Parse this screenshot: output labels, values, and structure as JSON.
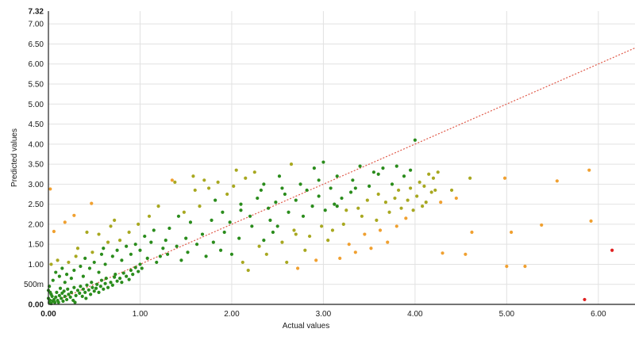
{
  "chart_data": {
    "type": "scatter",
    "xlabel": "Actual values",
    "ylabel": "Predicted values",
    "xlim": [
      0,
      6.4
    ],
    "ylim": [
      0,
      7.32
    ],
    "grid": true,
    "x_ticks": [
      {
        "value": 0,
        "label": "0.00"
      },
      {
        "value": 1,
        "label": "1.00"
      },
      {
        "value": 2,
        "label": "2.00"
      },
      {
        "value": 3,
        "label": "3.00"
      },
      {
        "value": 4,
        "label": "4.00"
      },
      {
        "value": 5,
        "label": "5.00"
      },
      {
        "value": 6,
        "label": "6.00"
      }
    ],
    "y_ticks": [
      {
        "value": 0,
        "label": "0.00"
      },
      {
        "value": 0.5,
        "label": "500m"
      },
      {
        "value": 1,
        "label": "1.00"
      },
      {
        "value": 1.5,
        "label": "1.50"
      },
      {
        "value": 2,
        "label": "2.00"
      },
      {
        "value": 2.5,
        "label": "2.50"
      },
      {
        "value": 3,
        "label": "3.00"
      },
      {
        "value": 3.5,
        "label": "3.50"
      },
      {
        "value": 4,
        "label": "4.00"
      },
      {
        "value": 4.5,
        "label": "4.50"
      },
      {
        "value": 5,
        "label": "5.00"
      },
      {
        "value": 5.5,
        "label": "5.50"
      },
      {
        "value": 6,
        "label": "6.00"
      },
      {
        "value": 6.5,
        "label": "6.50"
      },
      {
        "value": 7,
        "label": "7.00"
      },
      {
        "value": 7.32,
        "label": "7.32"
      }
    ],
    "reference_line": {
      "slope": 1,
      "intercept": 0,
      "style": "dotted",
      "color": "#e05a4a"
    },
    "colors": {
      "good": "#2a8c1c",
      "mid": "#a8a820",
      "warn": "#f0a030",
      "bad": "#e02020",
      "grid": "#e2e2e2",
      "axis": "#222222"
    },
    "points": [
      [
        0.01,
        0.05
      ],
      [
        0.02,
        0.1
      ],
      [
        0.03,
        0.02
      ],
      [
        0.0,
        0.15
      ],
      [
        0.04,
        0.2
      ],
      [
        0.05,
        0.08
      ],
      [
        0.02,
        0.3
      ],
      [
        0.01,
        0.45
      ],
      [
        0.06,
        0.12
      ],
      [
        0.03,
        0.25
      ],
      [
        0.07,
        0.05
      ],
      [
        0.08,
        0.18
      ],
      [
        0.0,
        0.35
      ],
      [
        0.1,
        0.1
      ],
      [
        0.12,
        0.22
      ],
      [
        0.09,
        0.3
      ],
      [
        0.11,
        0.05
      ],
      [
        0.14,
        0.15
      ],
      [
        0.15,
        0.28
      ],
      [
        0.13,
        0.4
      ],
      [
        0.16,
        0.08
      ],
      [
        0.18,
        0.2
      ],
      [
        0.2,
        0.12
      ],
      [
        0.17,
        0.33
      ],
      [
        0.22,
        0.25
      ],
      [
        0.24,
        0.18
      ],
      [
        0.21,
        0.38
      ],
      [
        0.25,
        0.3
      ],
      [
        0.27,
        0.1
      ],
      [
        0.28,
        0.42
      ],
      [
        0.3,
        0.22
      ],
      [
        0.32,
        0.35
      ],
      [
        0.29,
        0.05
      ],
      [
        0.34,
        0.28
      ],
      [
        0.35,
        0.45
      ],
      [
        0.37,
        0.2
      ],
      [
        0.38,
        0.38
      ],
      [
        0.4,
        0.3
      ],
      [
        0.42,
        0.48
      ],
      [
        0.41,
        0.15
      ],
      [
        0.44,
        0.36
      ],
      [
        0.46,
        0.25
      ],
      [
        0.48,
        0.42
      ],
      [
        0.5,
        0.33
      ],
      [
        0.47,
        0.55
      ],
      [
        0.52,
        0.4
      ],
      [
        0.55,
        0.3
      ],
      [
        0.53,
        0.5
      ],
      [
        0.57,
        0.45
      ],
      [
        0.6,
        0.38
      ],
      [
        0.58,
        0.6
      ],
      [
        0.62,
        0.52
      ],
      [
        0.65,
        0.42
      ],
      [
        0.63,
        0.65
      ],
      [
        0.68,
        0.55
      ],
      [
        0.7,
        0.48
      ],
      [
        0.72,
        0.68
      ],
      [
        0.75,
        0.58
      ],
      [
        0.73,
        0.75
      ],
      [
        0.78,
        0.65
      ],
      [
        0.8,
        0.55
      ],
      [
        0.82,
        0.78
      ],
      [
        0.85,
        0.7
      ],
      [
        0.88,
        0.62
      ],
      [
        0.9,
        0.85
      ],
      [
        0.92,
        0.75
      ],
      [
        0.95,
        0.92
      ],
      [
        0.98,
        0.82
      ],
      [
        1.0,
        1.0
      ],
      [
        1.02,
        0.9
      ],
      [
        0.05,
        0.6
      ],
      [
        0.08,
        0.8
      ],
      [
        0.03,
        1.0
      ],
      [
        0.1,
        1.1
      ],
      [
        0.12,
        0.7
      ],
      [
        0.18,
        0.55
      ],
      [
        0.15,
        0.9
      ],
      [
        0.2,
        0.75
      ],
      [
        0.25,
        0.65
      ],
      [
        0.22,
        1.05
      ],
      [
        0.28,
        0.85
      ],
      [
        0.3,
        1.2
      ],
      [
        0.35,
        0.95
      ],
      [
        0.38,
        0.7
      ],
      [
        0.4,
        1.15
      ],
      [
        0.45,
        0.9
      ],
      [
        0.48,
        1.3
      ],
      [
        0.5,
        1.05
      ],
      [
        0.55,
        0.8
      ],
      [
        0.58,
        1.25
      ],
      [
        0.6,
        1.4
      ],
      [
        0.62,
        1.0
      ],
      [
        0.65,
        1.55
      ],
      [
        0.7,
        1.2
      ],
      [
        0.75,
        1.35
      ],
      [
        0.78,
        1.6
      ],
      [
        0.8,
        1.1
      ],
      [
        0.85,
        1.45
      ],
      [
        0.88,
        1.8
      ],
      [
        0.9,
        1.25
      ],
      [
        0.95,
        1.5
      ],
      [
        0.98,
        2.0
      ],
      [
        1.0,
        1.35
      ],
      [
        1.05,
        1.7
      ],
      [
        1.08,
        1.15
      ],
      [
        1.1,
        2.2
      ],
      [
        1.12,
        1.55
      ],
      [
        1.15,
        1.85
      ],
      [
        1.18,
        1.05
      ],
      [
        1.2,
        2.45
      ],
      [
        0.02,
        2.88
      ],
      [
        0.06,
        1.82
      ],
      [
        0.18,
        2.05
      ],
      [
        0.28,
        2.22
      ],
      [
        0.47,
        2.52
      ],
      [
        0.32,
        1.4
      ],
      [
        0.42,
        1.8
      ],
      [
        0.55,
        1.75
      ],
      [
        0.68,
        1.95
      ],
      [
        0.72,
        2.1
      ],
      [
        1.22,
        1.2
      ],
      [
        1.25,
        1.4
      ],
      [
        1.28,
        1.6
      ],
      [
        1.3,
        1.25
      ],
      [
        1.32,
        1.9
      ],
      [
        1.35,
        3.1
      ],
      [
        1.38,
        3.05
      ],
      [
        1.4,
        1.45
      ],
      [
        1.42,
        2.2
      ],
      [
        1.45,
        1.1
      ],
      [
        1.48,
        2.3
      ],
      [
        1.5,
        1.65
      ],
      [
        1.52,
        1.3
      ],
      [
        1.55,
        2.05
      ],
      [
        1.58,
        3.2
      ],
      [
        1.6,
        2.85
      ],
      [
        1.62,
        1.5
      ],
      [
        1.65,
        2.45
      ],
      [
        1.68,
        1.75
      ],
      [
        1.7,
        3.1
      ],
      [
        1.72,
        1.2
      ],
      [
        1.75,
        2.9
      ],
      [
        1.78,
        2.1
      ],
      [
        1.8,
        1.55
      ],
      [
        1.82,
        2.6
      ],
      [
        1.85,
        3.05
      ],
      [
        1.88,
        1.35
      ],
      [
        1.9,
        2.3
      ],
      [
        1.92,
        1.8
      ],
      [
        1.95,
        2.75
      ],
      [
        1.98,
        2.05
      ],
      [
        2.0,
        1.25
      ],
      [
        2.02,
        2.95
      ],
      [
        2.05,
        3.35
      ],
      [
        2.08,
        1.65
      ],
      [
        2.1,
        2.5
      ],
      [
        2.12,
        1.05
      ],
      [
        2.15,
        3.15
      ],
      [
        2.18,
        0.85
      ],
      [
        2.2,
        2.2
      ],
      [
        2.22,
        1.95
      ],
      [
        2.25,
        3.3
      ],
      [
        2.28,
        2.65
      ],
      [
        2.3,
        1.45
      ],
      [
        2.32,
        2.85
      ],
      [
        2.35,
        3.0
      ],
      [
        2.38,
        1.25
      ],
      [
        2.4,
        2.4
      ],
      [
        2.42,
        2.1
      ],
      [
        2.45,
        1.8
      ],
      [
        2.48,
        2.55
      ],
      [
        2.5,
        1.95
      ],
      [
        2.52,
        3.2
      ],
      [
        2.55,
        1.55
      ],
      [
        2.58,
        2.75
      ],
      [
        2.6,
        1.05
      ],
      [
        2.62,
        2.3
      ],
      [
        2.65,
        3.5
      ],
      [
        2.68,
        1.85
      ],
      [
        2.7,
        2.6
      ],
      [
        2.72,
        0.9
      ],
      [
        2.75,
        3.0
      ],
      [
        2.78,
        2.2
      ],
      [
        2.8,
        1.35
      ],
      [
        2.82,
        2.85
      ],
      [
        2.85,
        1.7
      ],
      [
        2.88,
        2.45
      ],
      [
        2.9,
        3.4
      ],
      [
        2.92,
        1.1
      ],
      [
        2.95,
        2.7
      ],
      [
        2.98,
        1.95
      ],
      [
        3.0,
        3.55
      ],
      [
        3.02,
        2.35
      ],
      [
        3.05,
        1.6
      ],
      [
        3.08,
        2.9
      ],
      [
        3.1,
        1.85
      ],
      [
        3.12,
        2.5
      ],
      [
        3.15,
        3.2
      ],
      [
        3.18,
        1.15
      ],
      [
        3.2,
        2.65
      ],
      [
        3.22,
        2.0
      ],
      [
        3.25,
        2.35
      ],
      [
        3.28,
        1.5
      ],
      [
        3.3,
        2.8
      ],
      [
        3.32,
        3.1
      ],
      [
        3.35,
        1.3
      ],
      [
        3.38,
        2.4
      ],
      [
        3.4,
        3.45
      ],
      [
        3.42,
        2.2
      ],
      [
        3.45,
        1.75
      ],
      [
        3.48,
        2.6
      ],
      [
        3.5,
        2.95
      ],
      [
        3.52,
        1.4
      ],
      [
        3.55,
        3.3
      ],
      [
        3.58,
        2.1
      ],
      [
        3.6,
        2.75
      ],
      [
        3.62,
        1.85
      ],
      [
        3.65,
        3.4
      ],
      [
        3.68,
        2.55
      ],
      [
        3.7,
        1.55
      ],
      [
        3.72,
        2.3
      ],
      [
        3.75,
        3.0
      ],
      [
        3.78,
        2.65
      ],
      [
        3.8,
        1.95
      ],
      [
        3.82,
        2.85
      ],
      [
        3.85,
        2.4
      ],
      [
        3.88,
        3.2
      ],
      [
        3.9,
        2.15
      ],
      [
        3.92,
        2.6
      ],
      [
        3.95,
        2.9
      ],
      [
        3.98,
        2.35
      ],
      [
        4.0,
        4.1
      ],
      [
        4.02,
        2.7
      ],
      [
        4.05,
        3.05
      ],
      [
        4.08,
        2.45
      ],
      [
        4.1,
        2.95
      ],
      [
        4.12,
        2.55
      ],
      [
        4.15,
        3.25
      ],
      [
        4.18,
        2.8
      ],
      [
        4.2,
        3.15
      ],
      [
        2.1,
        2.35
      ],
      [
        2.35,
        1.6
      ],
      [
        2.55,
        2.9
      ],
      [
        2.7,
        1.75
      ],
      [
        2.95,
        3.1
      ],
      [
        3.15,
        2.45
      ],
      [
        3.35,
        2.9
      ],
      [
        3.6,
        3.25
      ],
      [
        3.8,
        3.45
      ],
      [
        3.95,
        3.35
      ],
      [
        4.22,
        2.85
      ],
      [
        4.25,
        3.3
      ],
      [
        4.28,
        2.55
      ],
      [
        4.3,
        1.28
      ],
      [
        4.4,
        2.85
      ],
      [
        4.45,
        2.65
      ],
      [
        4.55,
        1.25
      ],
      [
        4.6,
        3.15
      ],
      [
        4.62,
        1.8
      ],
      [
        4.98,
        3.15
      ],
      [
        5.0,
        0.95
      ],
      [
        5.05,
        1.8
      ],
      [
        5.2,
        0.95
      ],
      [
        5.38,
        1.98
      ],
      [
        5.55,
        3.08
      ],
      [
        5.85,
        0.12
      ],
      [
        5.9,
        3.35
      ],
      [
        5.92,
        2.08
      ],
      [
        6.15,
        1.35
      ]
    ]
  }
}
